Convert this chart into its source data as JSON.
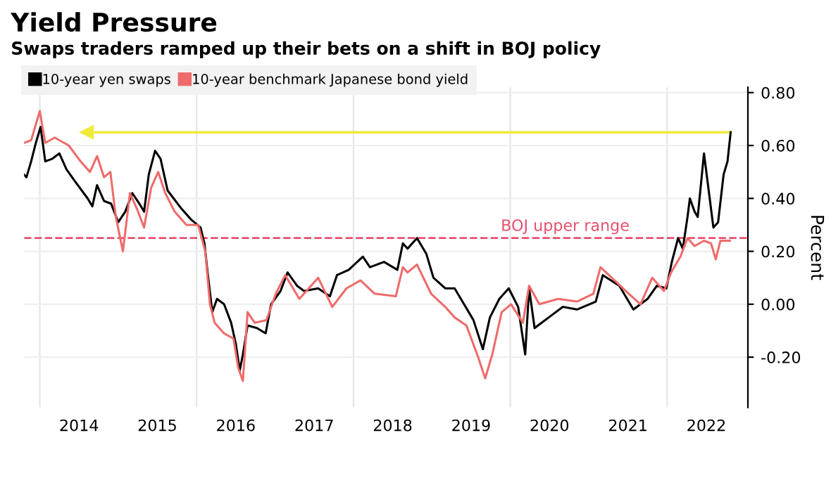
{
  "chart_data": {
    "type": "line",
    "title": "Yield Pressure",
    "subtitle": "Swaps traders ramped up their bets on a shift in BOJ policy",
    "ylabel": "Percent",
    "series": [
      {
        "name": "10-year yen swaps",
        "color": "#000000",
        "x": [
          2013.8,
          2013.83,
          2013.89,
          2013.95,
          2014.01,
          2014.07,
          2014.16,
          2014.25,
          2014.34,
          2014.46,
          2014.61,
          2014.67,
          2014.73,
          2014.82,
          2014.91,
          2015.0,
          2015.09,
          2015.18,
          2015.27,
          2015.33,
          2015.39,
          2015.47,
          2015.54,
          2015.63,
          2015.81,
          2015.93,
          2016.05,
          2016.1,
          2016.14,
          2016.2,
          2016.26,
          2016.35,
          2016.44,
          2016.5,
          2016.55,
          2016.59,
          2016.65,
          2016.77,
          2016.88,
          2016.95,
          2017.07,
          2017.16,
          2017.28,
          2017.37,
          2017.55,
          2017.7,
          2017.79,
          2017.94,
          2018.12,
          2018.21,
          2018.39,
          2018.56,
          2018.63,
          2018.69,
          2018.81,
          2018.93,
          2019.02,
          2019.17,
          2019.29,
          2019.41,
          2019.53,
          2019.65,
          2019.74,
          2019.86,
          2019.98,
          2020.1,
          2020.19,
          2020.24,
          2020.31,
          2020.49,
          2020.67,
          2020.85,
          2021.09,
          2021.18,
          2021.39,
          2021.57,
          2021.75,
          2021.87,
          2021.99,
          2022.06,
          2022.14,
          2022.2,
          2022.26,
          2022.29,
          2022.35,
          2022.39,
          2022.47,
          2022.53,
          2022.59,
          2022.65,
          2022.72,
          2022.77,
          2022.81
        ],
        "values": [
          0.49,
          0.48,
          0.54,
          0.61,
          0.67,
          0.54,
          0.55,
          0.57,
          0.51,
          0.46,
          0.4,
          0.37,
          0.45,
          0.39,
          0.38,
          0.31,
          0.35,
          0.42,
          0.38,
          0.35,
          0.49,
          0.58,
          0.55,
          0.43,
          0.36,
          0.32,
          0.29,
          0.23,
          0.12,
          -0.03,
          0.02,
          0.0,
          -0.07,
          -0.15,
          -0.25,
          -0.19,
          -0.08,
          -0.09,
          -0.11,
          0.0,
          0.05,
          0.12,
          0.07,
          0.05,
          0.06,
          0.03,
          0.11,
          0.13,
          0.18,
          0.14,
          0.16,
          0.13,
          0.23,
          0.21,
          0.25,
          0.19,
          0.1,
          0.06,
          0.06,
          0.0,
          -0.06,
          -0.17,
          -0.05,
          0.02,
          0.06,
          -0.01,
          -0.19,
          0.06,
          -0.09,
          -0.05,
          -0.01,
          -0.02,
          0.01,
          0.11,
          0.07,
          -0.02,
          0.02,
          0.07,
          0.06,
          0.16,
          0.25,
          0.21,
          0.33,
          0.4,
          0.35,
          0.33,
          0.57,
          0.43,
          0.29,
          0.31,
          0.49,
          0.54,
          0.65
        ]
      },
      {
        "name": "10-year benchmark Japanese bond yield",
        "color": "#ef6b6b",
        "x": [
          2013.8,
          2013.89,
          2014.0,
          2014.07,
          2014.19,
          2014.37,
          2014.52,
          2014.64,
          2014.73,
          2014.82,
          2014.9,
          2014.97,
          2015.06,
          2015.15,
          2015.24,
          2015.33,
          2015.42,
          2015.51,
          2015.6,
          2015.72,
          2015.87,
          2016.02,
          2016.11,
          2016.17,
          2016.23,
          2016.35,
          2016.47,
          2016.53,
          2016.59,
          2016.65,
          2016.74,
          2016.89,
          2017.01,
          2017.13,
          2017.31,
          2017.55,
          2017.73,
          2017.91,
          2018.09,
          2018.27,
          2018.54,
          2018.63,
          2018.69,
          2018.81,
          2018.99,
          2019.17,
          2019.29,
          2019.44,
          2019.59,
          2019.68,
          2019.77,
          2019.89,
          2020.01,
          2020.16,
          2020.24,
          2020.37,
          2020.61,
          2020.85,
          2021.06,
          2021.15,
          2021.33,
          2021.51,
          2021.66,
          2021.81,
          2021.96,
          2022.05,
          2022.17,
          2022.26,
          2022.35,
          2022.47,
          2022.56,
          2022.62,
          2022.68,
          2022.8
        ],
        "values": [
          0.61,
          0.62,
          0.73,
          0.61,
          0.63,
          0.6,
          0.54,
          0.5,
          0.56,
          0.48,
          0.5,
          0.33,
          0.2,
          0.42,
          0.36,
          0.29,
          0.44,
          0.5,
          0.42,
          0.35,
          0.3,
          0.3,
          0.2,
          0.0,
          -0.07,
          -0.11,
          -0.13,
          -0.24,
          -0.29,
          -0.03,
          -0.07,
          -0.06,
          0.04,
          0.11,
          0.02,
          0.1,
          -0.01,
          0.06,
          0.09,
          0.04,
          0.03,
          0.14,
          0.12,
          0.15,
          0.04,
          -0.01,
          -0.05,
          -0.08,
          -0.2,
          -0.28,
          -0.19,
          -0.03,
          0.0,
          -0.07,
          0.07,
          0.0,
          0.02,
          0.01,
          0.04,
          0.14,
          0.09,
          0.04,
          0.0,
          0.1,
          0.05,
          0.12,
          0.18,
          0.25,
          0.22,
          0.24,
          0.23,
          0.17,
          0.24,
          0.24
        ]
      },
      {
        "color": "#f2ea3a",
        "x": [
          2014.6,
          2022.81
        ],
        "values": [
          0.65,
          0.65
        ],
        "marker": "triangle"
      }
    ],
    "ref_lines": [
      {
        "axis": "y",
        "value": 0.25,
        "label": "BOJ upper range",
        "color": "#e8506e",
        "line_style": "dashed"
      },
      {
        "axis": "x",
        "value": 2014,
        "color": "#e6e6e6"
      },
      {
        "axis": "x",
        "value": 2016,
        "color": "#e6e6e6"
      },
      {
        "axis": "x",
        "value": 2018,
        "color": "#e6e6e6"
      },
      {
        "axis": "x",
        "value": 2020,
        "color": "#e6e6e6"
      },
      {
        "axis": "x",
        "value": 2022,
        "color": "#e6e6e6"
      }
    ],
    "xlim": [
      2013.8,
      2023.03
    ],
    "ylim": [
      -0.39,
      0.82
    ],
    "xticks": [
      {
        "value": 2014.5,
        "label": "2014"
      },
      {
        "value": 2015.5,
        "label": "2015"
      },
      {
        "value": 2016.5,
        "label": "2016"
      },
      {
        "value": 2017.5,
        "label": "2017"
      },
      {
        "value": 2018.5,
        "label": "2018"
      },
      {
        "value": 2019.5,
        "label": "2019"
      },
      {
        "value": 2020.5,
        "label": "2020"
      },
      {
        "value": 2021.5,
        "label": "2021"
      },
      {
        "value": 2022.5,
        "label": "2022"
      }
    ],
    "yticks": [
      {
        "value": -0.2,
        "label": "-0.20"
      },
      {
        "value": 0.0,
        "label": "0.00"
      },
      {
        "value": 0.2,
        "label": "0.20"
      },
      {
        "value": 0.4,
        "label": "0.40"
      },
      {
        "value": 0.6,
        "label": "0.60"
      },
      {
        "value": 0.8,
        "label": "0.80"
      }
    ],
    "grid": "y",
    "legend": "top left",
    "line_style": "solid",
    "marker": "none"
  }
}
